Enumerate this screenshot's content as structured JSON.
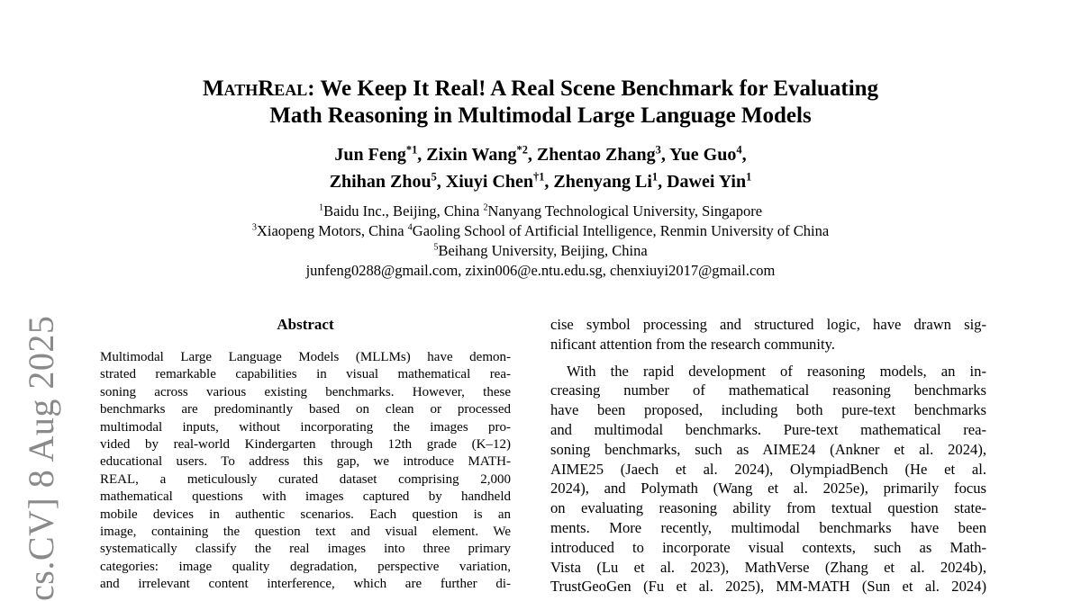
{
  "watermark": {
    "text": "cs.CV] 8 Aug 2025",
    "color": "#8a8a8a"
  },
  "title": {
    "brand": "MathReal",
    "line1_rest": ": We Keep It Real! A Real Scene Benchmark for Evaluating",
    "line2": "Math Reasoning in Multimodal Large Language Models"
  },
  "authors": {
    "line1": [
      {
        "name": "Jun Feng",
        "sup": "*1",
        "tail": ", "
      },
      {
        "name": "Zixin Wang",
        "sup": "*2",
        "tail": ", "
      },
      {
        "name": "Zhentao Zhang",
        "sup": "3",
        "tail": ", "
      },
      {
        "name": "Yue Guo",
        "sup": "4",
        "tail": ","
      }
    ],
    "line2": [
      {
        "name": "Zhihan Zhou",
        "sup": "5",
        "tail": ", "
      },
      {
        "name": "Xiuyi Chen",
        "sup": "†1",
        "tail": ", "
      },
      {
        "name": "Zhenyang Li",
        "sup": "1",
        "tail": ", "
      },
      {
        "name": "Dawei Yin",
        "sup": "1",
        "tail": ""
      }
    ]
  },
  "affiliations": {
    "line1": [
      {
        "sup": "1",
        "text": "Baidu Inc., Beijing, China "
      },
      {
        "sup": "2",
        "text": "Nanyang Technological University, Singapore"
      }
    ],
    "line2": [
      {
        "sup": "3",
        "text": "Xiaopeng Motors, China "
      },
      {
        "sup": "4",
        "text": "Gaoling School of Artificial Intelligence, Renmin University of China"
      }
    ],
    "line3": [
      {
        "sup": "5",
        "text": "Beihang University, Beijing, China"
      }
    ],
    "emails": "junfeng0288@gmail.com, zixin006@e.ntu.edu.sg, chenxiuyi2017@gmail.com"
  },
  "abstract": {
    "heading": "Abstract",
    "lines": [
      "Multimodal Large Language Models (MLLMs) have demon-",
      "strated remarkable capabilities in visual mathematical rea-",
      "soning across various existing benchmarks. However, these",
      "benchmarks are predominantly based on clean or processed",
      "multimodal inputs, without incorporating the images pro-",
      "vided by real-world Kindergarten through 12th grade (K–12)",
      "educational users. To address this gap, we introduce MATH-",
      "REAL, a meticulously curated dataset comprising 2,000",
      "mathematical questions with images captured by handheld",
      "mobile devices in authentic scenarios. Each question is an",
      "image, containing the question text and visual element. We",
      "systematically classify the real images into three primary",
      "categories: image quality degradation, perspective variation,",
      "and irrelevant content interference, which are further di-"
    ]
  },
  "body": {
    "paragraph1": {
      "lines": [
        "cise symbol processing and structured logic, have drawn sig-",
        {
          "text": "nificant attention from the research community.",
          "last": true
        }
      ]
    },
    "paragraph2": {
      "lines": [
        {
          "text": "With the rapid development of reasoning models, an in-",
          "indent": true
        },
        "creasing number of mathematical reasoning benchmarks",
        "have been proposed, including both pure-text benchmarks",
        "and multimodal benchmarks. Pure-text mathematical rea-",
        "soning benchmarks, such as AIME24 (Ankner et al. 2024),",
        "AIME25 (Jaech et al. 2024), OlympiadBench (He et al.",
        "2024), and Polymath (Wang et al. 2025e), primarily focus",
        "on evaluating reasoning ability from textual question state-",
        "ments. More recently, multimodal benchmarks have been",
        "introduced to incorporate visual contexts, such as Math-",
        "Vista (Lu et al. 2023), MathVerse (Zhang et al. 2024b),",
        "TrustGeoGen (Fu et al. 2025), MM-MATH (Sun et al. 2024)"
      ]
    }
  }
}
